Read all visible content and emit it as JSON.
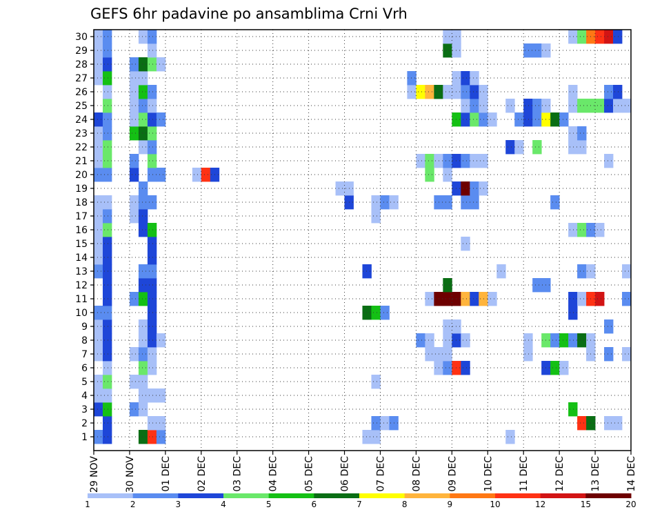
{
  "chart_data": {
    "type": "heatmap",
    "title": "GEFS 6hr padavine po ansamblima Crni Vrh",
    "xlabel": "",
    "ylabel": "",
    "x_tick_labels": [
      "29 NOV",
      "30 NOV",
      "01 DEC",
      "02 DEC",
      "03 DEC",
      "04 DEC",
      "05 DEC",
      "06 DEC",
      "07 DEC",
      "08 DEC",
      "09 DEC",
      "10 DEC",
      "11 DEC",
      "12 DEC",
      "13 DEC",
      "14 DEC"
    ],
    "y_tick_labels": [
      "1",
      "2",
      "3",
      "4",
      "5",
      "6",
      "7",
      "8",
      "9",
      "10",
      "11",
      "12",
      "13",
      "14",
      "15",
      "16",
      "17",
      "18",
      "19",
      "20",
      "21",
      "22",
      "23",
      "24",
      "25",
      "26",
      "27",
      "28",
      "29",
      "30"
    ],
    "x_range_days": [
      0,
      15
    ],
    "time_step_days": 0.25,
    "members": 30,
    "grid": true,
    "colorbar": {
      "position": "bottom",
      "labels": [
        "1",
        "2",
        "3",
        "4",
        "5",
        "6",
        "7",
        "8",
        "9",
        "10",
        "12",
        "15",
        "20"
      ],
      "colors": [
        "#a8c0f8",
        "#5a8cf0",
        "#1e46d8",
        "#6ae86a",
        "#14c014",
        "#0a6e14",
        "#ffff00",
        "#ffb43c",
        "#ff7814",
        "#ff3214",
        "#d21414",
        "#6e0000"
      ]
    },
    "series": [
      {
        "member": 1,
        "cells": [
          [
            0,
            2
          ],
          [
            0.25,
            3
          ],
          [
            1.25,
            6
          ],
          [
            1.5,
            10
          ],
          [
            1.75,
            2
          ],
          [
            7.5,
            1
          ],
          [
            7.75,
            1
          ],
          [
            11.5,
            1
          ]
        ]
      },
      {
        "member": 2,
        "cells": [
          [
            0.25,
            3
          ],
          [
            1.5,
            1
          ],
          [
            1.75,
            1
          ],
          [
            7.75,
            2
          ],
          [
            8,
            1
          ],
          [
            8.25,
            2
          ],
          [
            13.5,
            10
          ],
          [
            13.75,
            6
          ],
          [
            14.25,
            1
          ],
          [
            14.5,
            1
          ]
        ]
      },
      {
        "member": 3,
        "cells": [
          [
            0,
            3
          ],
          [
            0.25,
            5
          ],
          [
            1,
            2
          ],
          [
            1.25,
            1
          ],
          [
            13.25,
            5
          ]
        ]
      },
      {
        "member": 4,
        "cells": [
          [
            0,
            1
          ],
          [
            0.25,
            1
          ],
          [
            1.25,
            1
          ],
          [
            1.5,
            1
          ],
          [
            1.75,
            1
          ]
        ]
      },
      {
        "member": 5,
        "cells": [
          [
            0,
            1
          ],
          [
            0.25,
            4
          ],
          [
            1,
            1
          ],
          [
            1.25,
            1
          ],
          [
            7.75,
            1
          ]
        ]
      },
      {
        "member": 6,
        "cells": [
          [
            0.25,
            1
          ],
          [
            1.25,
            4
          ],
          [
            1.5,
            1
          ],
          [
            9.5,
            1
          ],
          [
            9.75,
            2
          ],
          [
            10,
            10
          ],
          [
            10.25,
            3
          ],
          [
            12.5,
            3
          ],
          [
            12.75,
            5
          ],
          [
            13,
            1
          ]
        ]
      },
      {
        "member": 7,
        "cells": [
          [
            0,
            1
          ],
          [
            0.25,
            3
          ],
          [
            1,
            1
          ],
          [
            1.25,
            2
          ],
          [
            1.5,
            1
          ],
          [
            9.25,
            1
          ],
          [
            9.5,
            1
          ],
          [
            9.75,
            1
          ],
          [
            12,
            1
          ],
          [
            13.75,
            1
          ],
          [
            14.25,
            2
          ],
          [
            14.75,
            1
          ],
          [
            15,
            2
          ]
        ]
      },
      {
        "member": 8,
        "cells": [
          [
            0,
            1
          ],
          [
            0.25,
            3
          ],
          [
            1.25,
            1
          ],
          [
            1.5,
            3
          ],
          [
            1.75,
            1
          ],
          [
            9,
            2
          ],
          [
            9.25,
            1
          ],
          [
            9.75,
            1
          ],
          [
            10,
            3
          ],
          [
            10.25,
            1
          ],
          [
            12,
            1
          ],
          [
            12.5,
            4
          ],
          [
            12.75,
            2
          ],
          [
            13,
            5
          ],
          [
            13.25,
            2
          ],
          [
            13.5,
            6
          ],
          [
            13.75,
            1
          ]
        ]
      },
      {
        "member": 9,
        "cells": [
          [
            0,
            1
          ],
          [
            0.25,
            3
          ],
          [
            1.25,
            1
          ],
          [
            1.5,
            3
          ],
          [
            9.75,
            1
          ],
          [
            10,
            1
          ],
          [
            14.25,
            2
          ],
          [
            15,
            1
          ]
        ]
      },
      {
        "member": 10,
        "cells": [
          [
            0,
            2
          ],
          [
            0.25,
            2
          ],
          [
            1.5,
            3
          ],
          [
            7.5,
            6
          ],
          [
            7.75,
            5
          ],
          [
            8,
            2
          ],
          [
            13.25,
            3
          ]
        ]
      },
      {
        "member": 11,
        "cells": [
          [
            0.25,
            3
          ],
          [
            1,
            2
          ],
          [
            1.25,
            5
          ],
          [
            1.5,
            3
          ],
          [
            9.25,
            1
          ],
          [
            9.5,
            12
          ],
          [
            9.75,
            13
          ],
          [
            10,
            14
          ],
          [
            10.25,
            8
          ],
          [
            10.5,
            3
          ],
          [
            10.75,
            8
          ],
          [
            11,
            1
          ],
          [
            13.25,
            3
          ],
          [
            13.5,
            1
          ],
          [
            13.75,
            10
          ],
          [
            14,
            11
          ],
          [
            14.75,
            2
          ]
        ]
      },
      {
        "member": 12,
        "cells": [
          [
            0.25,
            3
          ],
          [
            1.25,
            3
          ],
          [
            1.5,
            3
          ],
          [
            9.75,
            6
          ],
          [
            12.25,
            2
          ],
          [
            12.5,
            2
          ]
        ]
      },
      {
        "member": 13,
        "cells": [
          [
            0,
            2
          ],
          [
            0.25,
            3
          ],
          [
            1.25,
            2
          ],
          [
            1.5,
            2
          ],
          [
            7.5,
            3
          ],
          [
            11.25,
            1
          ],
          [
            13.5,
            2
          ],
          [
            13.75,
            1
          ],
          [
            14.75,
            1
          ]
        ]
      },
      {
        "member": 14,
        "cells": [
          [
            0,
            1
          ],
          [
            0.25,
            3
          ],
          [
            1.5,
            3
          ]
        ]
      },
      {
        "member": 15,
        "cells": [
          [
            0,
            1
          ],
          [
            0.25,
            3
          ],
          [
            1.5,
            3
          ],
          [
            10.25,
            1
          ]
        ]
      },
      {
        "member": 16,
        "cells": [
          [
            0,
            1
          ],
          [
            0.25,
            4
          ],
          [
            1.25,
            3
          ],
          [
            1.5,
            5
          ],
          [
            13.25,
            1
          ],
          [
            13.5,
            4
          ],
          [
            13.75,
            2
          ],
          [
            14,
            1
          ]
        ]
      },
      {
        "member": 17,
        "cells": [
          [
            0,
            1
          ],
          [
            0.25,
            2
          ],
          [
            1,
            1
          ],
          [
            1.25,
            3
          ],
          [
            7.75,
            1
          ]
        ]
      },
      {
        "member": 18,
        "cells": [
          [
            0,
            1
          ],
          [
            0.25,
            1
          ],
          [
            1,
            1
          ],
          [
            1.25,
            2
          ],
          [
            1.5,
            2
          ],
          [
            7,
            3
          ],
          [
            7.75,
            1
          ],
          [
            8,
            2
          ],
          [
            8.25,
            1
          ],
          [
            9.5,
            2
          ],
          [
            9.75,
            2
          ],
          [
            10.25,
            2
          ],
          [
            10.5,
            2
          ],
          [
            12.75,
            2
          ]
        ]
      },
      {
        "member": 19,
        "cells": [
          [
            1.25,
            2
          ],
          [
            6.75,
            1
          ],
          [
            7,
            1
          ],
          [
            10,
            3
          ],
          [
            10.25,
            12
          ],
          [
            10.5,
            2
          ],
          [
            10.75,
            1
          ]
        ]
      },
      {
        "member": 20,
        "cells": [
          [
            0,
            2
          ],
          [
            0.25,
            2
          ],
          [
            1,
            3
          ],
          [
            1.5,
            2
          ],
          [
            1.75,
            2
          ],
          [
            2.75,
            1
          ],
          [
            3,
            10
          ],
          [
            3.25,
            3
          ],
          [
            9.25,
            4
          ],
          [
            9.75,
            1
          ]
        ]
      },
      {
        "member": 21,
        "cells": [
          [
            0,
            1
          ],
          [
            0.25,
            4
          ],
          [
            1,
            2
          ],
          [
            1.5,
            4
          ],
          [
            9,
            1
          ],
          [
            9.25,
            4
          ],
          [
            9.5,
            1
          ],
          [
            9.75,
            2
          ],
          [
            10,
            3
          ],
          [
            10.25,
            2
          ],
          [
            10.5,
            1
          ],
          [
            10.75,
            1
          ],
          [
            14.25,
            1
          ]
        ]
      },
      {
        "member": 22,
        "cells": [
          [
            0,
            1
          ],
          [
            0.25,
            4
          ],
          [
            1.25,
            1
          ],
          [
            1.5,
            2
          ],
          [
            11.5,
            3
          ],
          [
            11.75,
            1
          ],
          [
            12.25,
            4
          ],
          [
            13.25,
            1
          ],
          [
            13.5,
            1
          ]
        ]
      },
      {
        "member": 23,
        "cells": [
          [
            0,
            1
          ],
          [
            0.25,
            2
          ],
          [
            1,
            5
          ],
          [
            1.25,
            6
          ],
          [
            1.5,
            4
          ],
          [
            13.25,
            1
          ],
          [
            13.5,
            2
          ]
        ]
      },
      {
        "member": 24,
        "cells": [
          [
            0,
            3
          ],
          [
            0.25,
            2
          ],
          [
            1,
            1
          ],
          [
            1.25,
            4
          ],
          [
            1.5,
            3
          ],
          [
            1.75,
            2
          ],
          [
            10,
            5
          ],
          [
            10.25,
            3
          ],
          [
            10.5,
            4
          ],
          [
            10.75,
            2
          ],
          [
            11,
            1
          ],
          [
            11.75,
            2
          ],
          [
            12,
            3
          ],
          [
            12.25,
            2
          ],
          [
            12.5,
            7
          ],
          [
            12.75,
            6
          ],
          [
            13,
            2
          ]
        ]
      },
      {
        "member": 25,
        "cells": [
          [
            0.25,
            4
          ],
          [
            1,
            1
          ],
          [
            1.25,
            2
          ],
          [
            1.5,
            1
          ],
          [
            10.25,
            1
          ],
          [
            10.5,
            2
          ],
          [
            10.75,
            1
          ],
          [
            11.5,
            1
          ],
          [
            12,
            3
          ],
          [
            12.25,
            2
          ],
          [
            12.5,
            1
          ],
          [
            13.25,
            1
          ],
          [
            13.5,
            4
          ],
          [
            13.75,
            4
          ],
          [
            14,
            4
          ],
          [
            14.25,
            3
          ],
          [
            14.5,
            1
          ],
          [
            14.75,
            1
          ]
        ]
      },
      {
        "member": 26,
        "cells": [
          [
            0.25,
            1
          ],
          [
            1,
            1
          ],
          [
            1.25,
            5
          ],
          [
            1.5,
            2
          ],
          [
            8.75,
            1
          ],
          [
            9,
            7
          ],
          [
            9.25,
            8
          ],
          [
            9.5,
            6
          ],
          [
            9.75,
            1
          ],
          [
            10,
            1
          ],
          [
            10.25,
            2
          ],
          [
            10.5,
            3
          ],
          [
            10.75,
            1
          ],
          [
            13.25,
            1
          ],
          [
            14.25,
            2
          ],
          [
            14.5,
            3
          ]
        ]
      },
      {
        "member": 27,
        "cells": [
          [
            0,
            1
          ],
          [
            0.25,
            5
          ],
          [
            1,
            1
          ],
          [
            1.25,
            1
          ],
          [
            8.75,
            2
          ],
          [
            10,
            1
          ],
          [
            10.25,
            3
          ],
          [
            10.5,
            1
          ]
        ]
      },
      {
        "member": 28,
        "cells": [
          [
            0,
            1
          ],
          [
            0.25,
            3
          ],
          [
            1,
            2
          ],
          [
            1.25,
            6
          ],
          [
            1.5,
            4
          ],
          [
            1.75,
            1
          ]
        ]
      },
      {
        "member": 29,
        "cells": [
          [
            0,
            1
          ],
          [
            0.25,
            2
          ],
          [
            1.5,
            1
          ],
          [
            9.75,
            6
          ],
          [
            10,
            1
          ],
          [
            12,
            2
          ],
          [
            12.25,
            2
          ],
          [
            12.5,
            1
          ]
        ]
      },
      {
        "member": 30,
        "cells": [
          [
            0,
            1
          ],
          [
            0.25,
            2
          ],
          [
            1.25,
            1
          ],
          [
            1.5,
            2
          ],
          [
            9.75,
            1
          ],
          [
            10,
            1
          ],
          [
            13.25,
            1
          ],
          [
            13.5,
            4
          ],
          [
            13.75,
            9
          ],
          [
            14,
            10
          ],
          [
            14.25,
            11
          ],
          [
            14.5,
            3
          ]
        ]
      }
    ]
  }
}
